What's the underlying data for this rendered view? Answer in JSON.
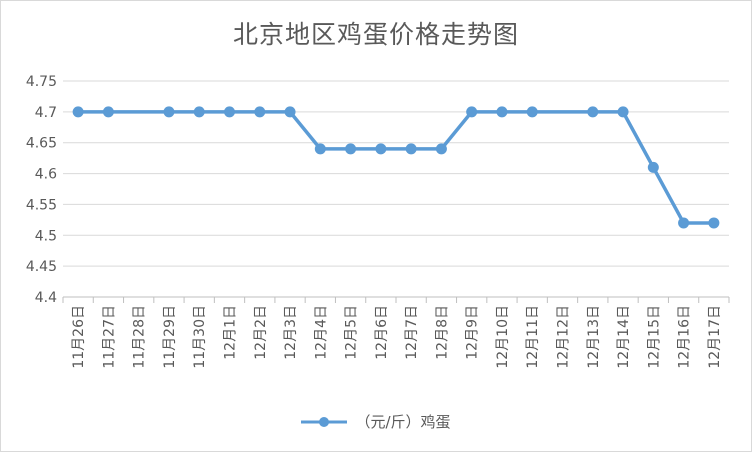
{
  "chart_data": {
    "type": "line",
    "title": "北京地区鸡蛋价格走势图",
    "categories": [
      "11月26日",
      "11月27日",
      "11月28日",
      "11月29日",
      "11月30日",
      "12月1日",
      "12月2日",
      "12月3日",
      "12月4日",
      "12月5日",
      "12月6日",
      "12月7日",
      "12月8日",
      "12月9日",
      "12月10日",
      "12月11日",
      "12月12日",
      "12月13日",
      "12月14日",
      "12月15日",
      "12月16日",
      "12月17日"
    ],
    "series": [
      {
        "name": "（元/斤）鸡蛋",
        "values": [
          4.7,
          4.7,
          null,
          4.7,
          4.7,
          4.7,
          4.7,
          4.7,
          4.64,
          4.64,
          4.64,
          4.64,
          4.64,
          4.7,
          4.7,
          4.7,
          null,
          4.7,
          4.7,
          4.61,
          4.52,
          4.52
        ],
        "color": "#5b9bd5"
      }
    ],
    "ylim": [
      4.4,
      4.75
    ],
    "yticks": [
      "4.4",
      "4.45",
      "4.5",
      "4.55",
      "4.6",
      "4.65",
      "4.7",
      "4.75"
    ],
    "grid": true,
    "legend_position": "bottom"
  }
}
